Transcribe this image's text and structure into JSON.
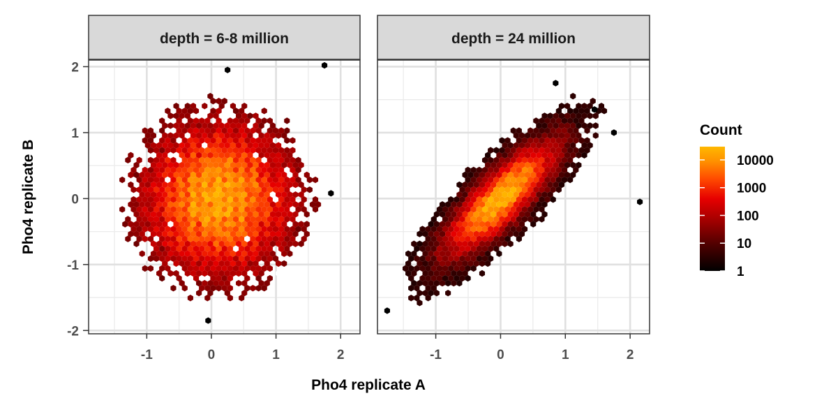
{
  "chart_data": {
    "type": "hexbin",
    "xlabel": "Pho4 replicate A",
    "ylabel": "Pho4 replicate B",
    "xlim": [
      -1.9,
      2.3
    ],
    "ylim": [
      -2.05,
      2.1
    ],
    "x_ticks": [
      -1,
      0,
      1,
      2
    ],
    "y_ticks": [
      -2,
      -1,
      0,
      1,
      2
    ],
    "grid": true,
    "panels": [
      {
        "strip_label": "depth = 6-8 million",
        "distribution": {
          "center_x": 0.1,
          "center_y": 0.0,
          "sd_x": 0.75,
          "sd_y": 0.75,
          "correlation": 0.0
        },
        "outliers": [
          [
            1.75,
            2.02
          ],
          [
            1.85,
            0.08
          ],
          [
            -0.05,
            -1.85
          ],
          [
            0.25,
            1.95
          ]
        ]
      },
      {
        "strip_label": "depth = 24 million",
        "distribution": {
          "center_x": 0.0,
          "center_y": 0.0,
          "sd_x": 0.65,
          "sd_y": 0.65,
          "correlation": 0.82
        },
        "outliers": [
          [
            2.15,
            -0.05
          ],
          [
            0.85,
            1.75
          ],
          [
            1.45,
            1.35
          ],
          [
            1.75,
            1.0
          ],
          [
            -1.75,
            -1.7
          ]
        ]
      }
    ],
    "legend": {
      "title": "Count",
      "scale": "log10",
      "labels": [
        "10000",
        "1000",
        "100",
        "10",
        "1"
      ],
      "values": [
        10000,
        1000,
        100,
        10,
        1
      ],
      "max_count": 30000,
      "colors": [
        "#000000",
        "#4a0000",
        "#a00000",
        "#e60000",
        "#ff4a00",
        "#ff9000",
        "#ffb800"
      ]
    }
  }
}
